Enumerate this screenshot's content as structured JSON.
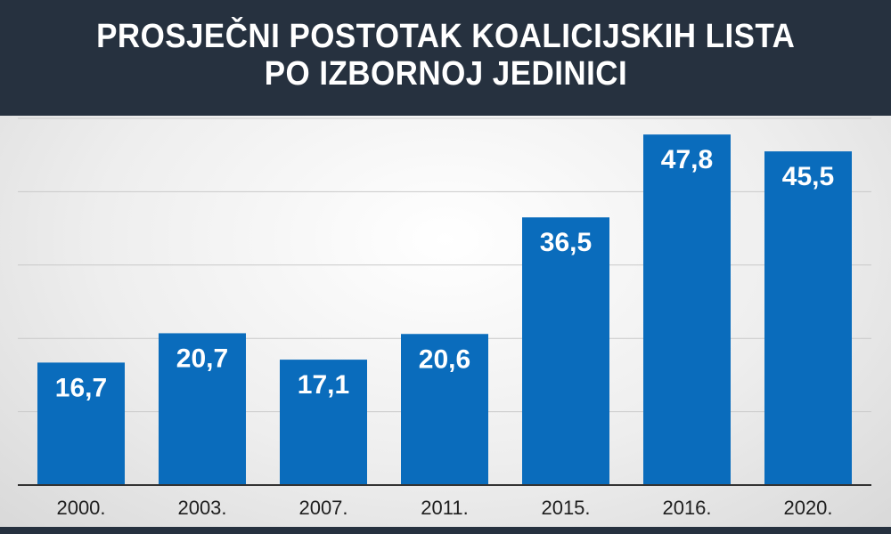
{
  "chart_data": {
    "type": "bar",
    "title_lines": [
      "PROSJEČNI POSTOTAK KOALICIJSKIH LISTA",
      "PO IZBORNOJ JEDINICI"
    ],
    "categories": [
      "2000.",
      "2003.",
      "2007.",
      "2011.",
      "2015.",
      "2016.",
      "2020."
    ],
    "values": [
      16.7,
      20.7,
      17.1,
      20.6,
      36.5,
      47.8,
      45.5
    ],
    "value_labels": [
      "16,7",
      "20,7",
      "17,1",
      "20,6",
      "36,5",
      "47,8",
      "45,5"
    ],
    "ylim": [
      0,
      50
    ],
    "grid": true,
    "legend": "none",
    "colors": {
      "bar": "#0a6cbc",
      "header": "#26313f",
      "label_text": "#ffffff",
      "tick_text": "#1e1e1e"
    }
  }
}
